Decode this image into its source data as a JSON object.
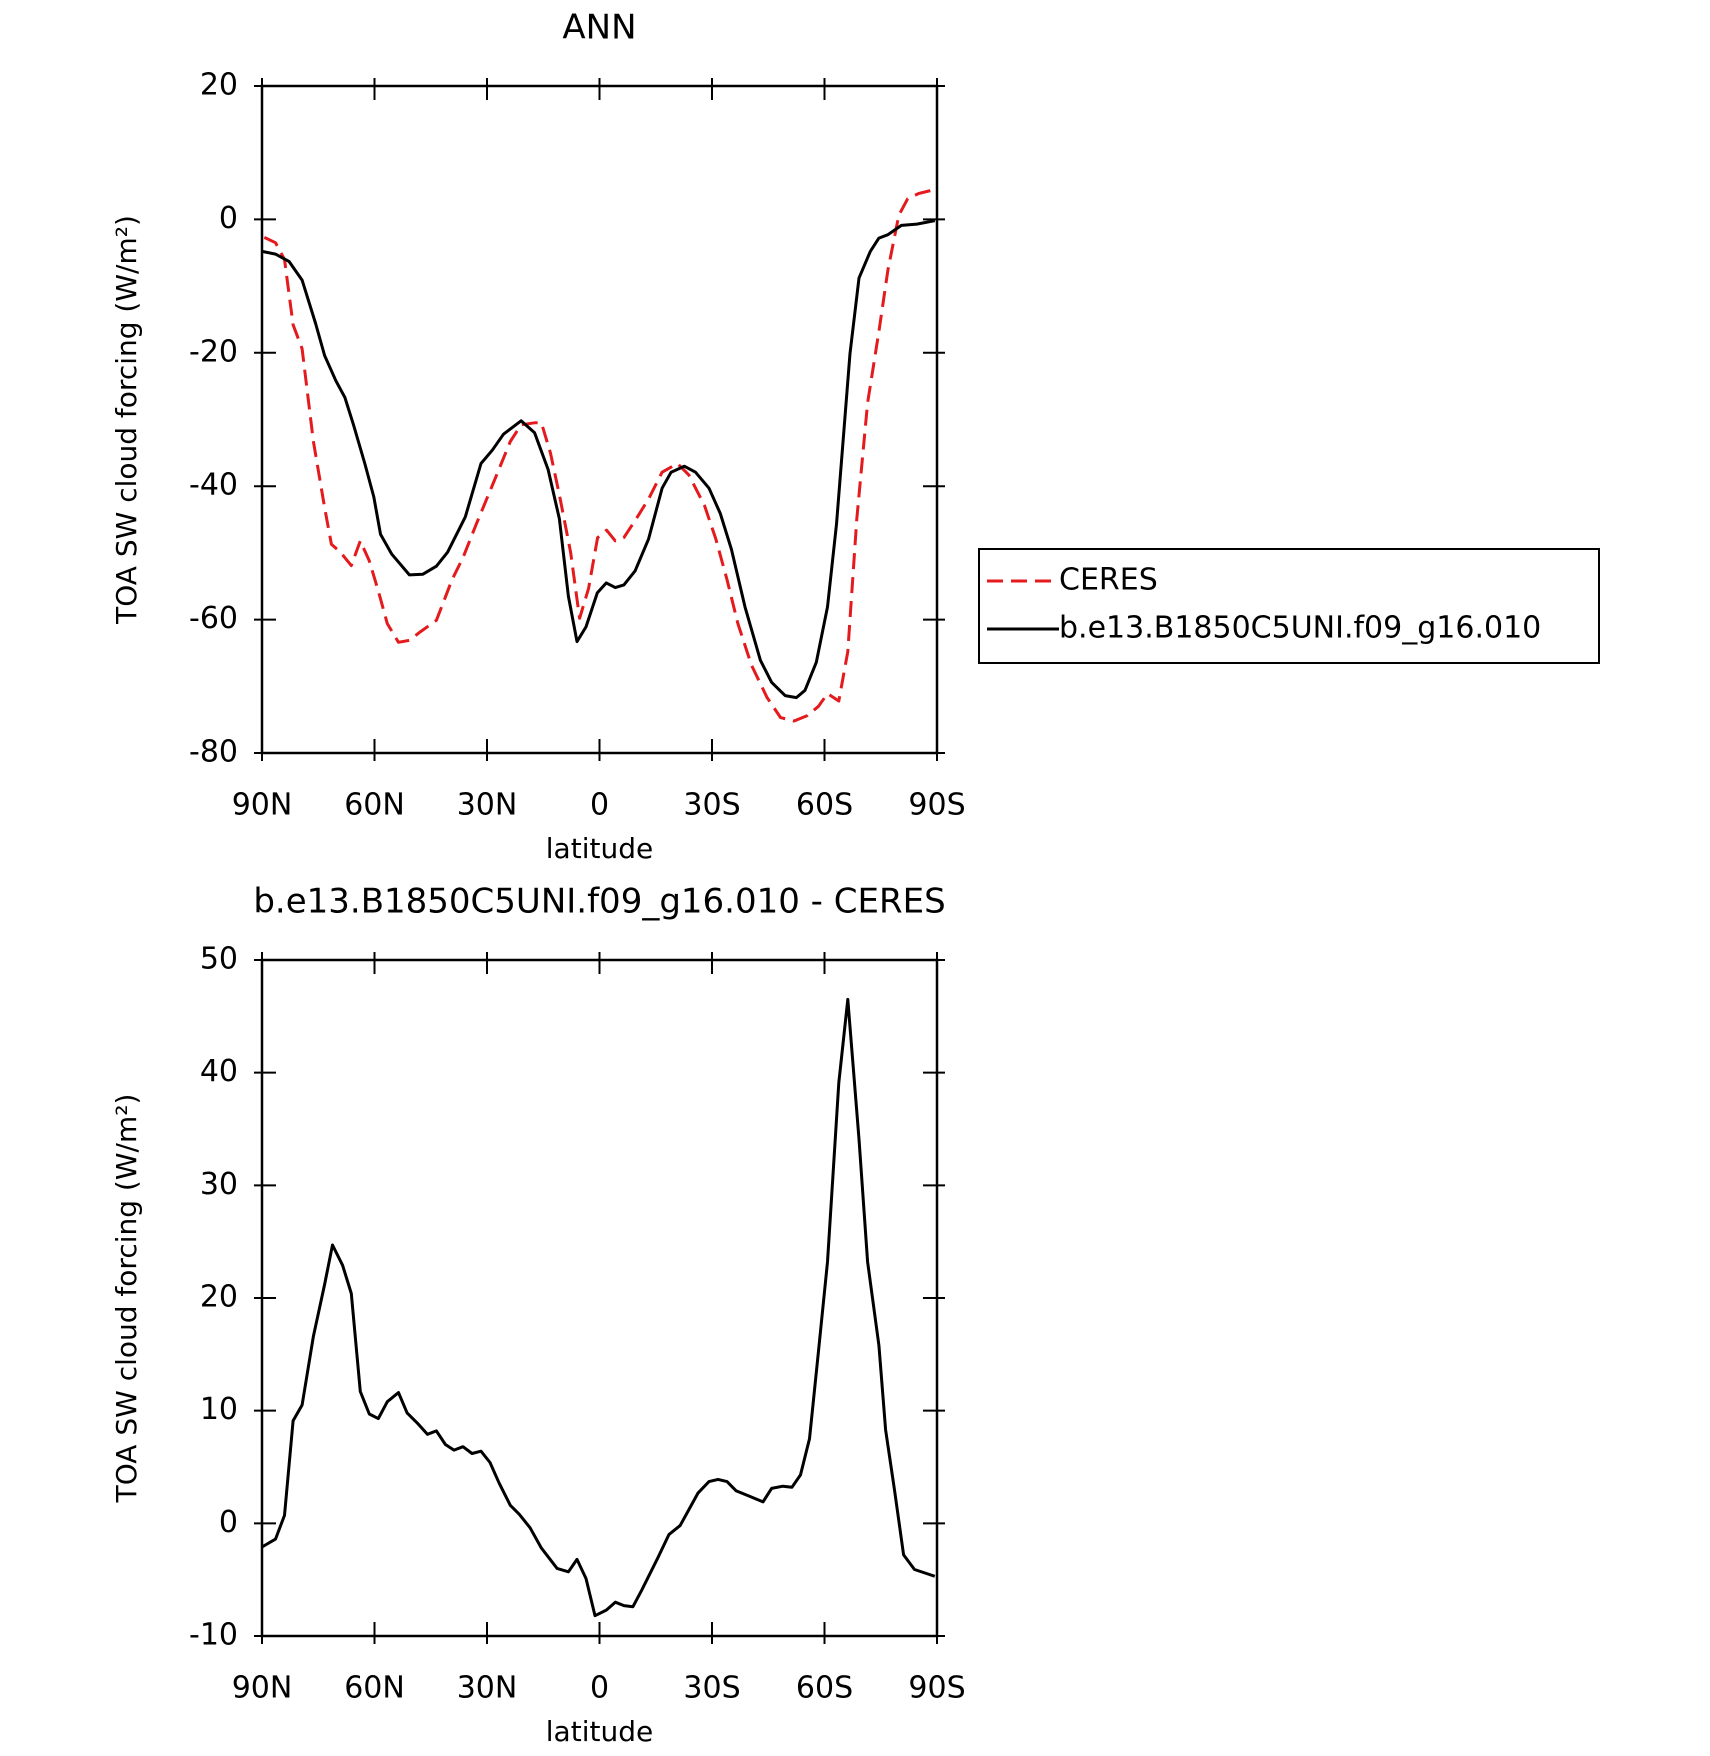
{
  "chart_data": [
    {
      "type": "line",
      "title": "ANN",
      "x_label": "latitude",
      "y_label": "TOA SW cloud forcing (W/m²)",
      "xlim": [
        90,
        -90
      ],
      "ylim": [
        -80,
        20
      ],
      "xticks": [
        {
          "value": 90,
          "label": "90N"
        },
        {
          "value": 60,
          "label": "60N"
        },
        {
          "value": 30,
          "label": "30N"
        },
        0,
        {
          "value": -30,
          "label": "30S"
        },
        {
          "value": -60,
          "label": "60S"
        },
        {
          "value": -90,
          "label": "90S"
        }
      ],
      "yticks": [
        -80,
        -60,
        -40,
        -20,
        0,
        20
      ],
      "legend": "right",
      "series": [
        {
          "name": "CERES",
          "color": "#e41a1c",
          "line_style": "dashed",
          "x": [
            89.4,
            86.4,
            84,
            81.7,
            79.3,
            76.3,
            73.3,
            71.5,
            69.1,
            66.2,
            63.8,
            61.4,
            59,
            56.6,
            53.6,
            50.7,
            47.7,
            43.5,
            39.3,
            36.4,
            32.8,
            28.6,
            23.8,
            20.9,
            17.3,
            15.5,
            13.1,
            10.7,
            7.7,
            5.3,
            2.9,
            0.5,
            -1.9,
            -4.2,
            -6.5,
            -10.1,
            -13.1,
            -16.7,
            -20.8,
            -23.8,
            -28,
            -31,
            -34,
            -36.9,
            -40.5,
            -44.7,
            -48.3,
            -51.9,
            -55.4,
            -58.4,
            -60.8,
            -63.8,
            -66.2,
            -68.6,
            -71.5,
            -74.5,
            -76.9,
            -79.8,
            -82.2,
            -85.2,
            -88.8
          ],
          "values": [
            -2.7,
            -3.5,
            -6,
            -15.8,
            -19.4,
            -33.3,
            -43.2,
            -48.7,
            -49.9,
            -51.9,
            -48.2,
            -51.2,
            -55.7,
            -60.6,
            -63.4,
            -63.1,
            -61.8,
            -60.1,
            -54,
            -50.7,
            -45.6,
            -39.9,
            -33.3,
            -30.8,
            -30.5,
            -30.5,
            -35,
            -41.3,
            -49.9,
            -59.8,
            -55.3,
            -47.7,
            -46.6,
            -48.2,
            -47.7,
            -44.6,
            -41.9,
            -37.9,
            -36.6,
            -38.3,
            -42.9,
            -47.9,
            -54,
            -60.6,
            -66.8,
            -71.7,
            -74.7,
            -75.2,
            -74.4,
            -73,
            -71.1,
            -72.2,
            -64.8,
            -44.9,
            -27.5,
            -16.8,
            -7.6,
            0.6,
            3.1,
            3.9,
            4.4
          ]
        },
        {
          "name": "b.e13.B1850C5UNI.f09_g16.010",
          "color": "#000000",
          "line_style": "solid",
          "x": [
            90,
            86.4,
            82.8,
            79.3,
            75.7,
            73.3,
            70.3,
            67.9,
            65.6,
            62.6,
            60.2,
            58.4,
            55.4,
            50.7,
            47.1,
            43.5,
            40.5,
            35.8,
            31.6,
            28.6,
            25.6,
            20.9,
            17.3,
            13.7,
            10.7,
            8.3,
            6,
            3.6,
            0.6,
            -1.8,
            -4.2,
            -6.5,
            -9.5,
            -13.1,
            -16.7,
            -19.1,
            -22.6,
            -25.6,
            -29.2,
            -32.2,
            -35.2,
            -38.8,
            -42.9,
            -45.9,
            -49.5,
            -52.5,
            -54.8,
            -57.8,
            -60.8,
            -63.2,
            -66.8,
            -69.2,
            -72.2,
            -74.5,
            -76.9,
            -80.5,
            -84.6,
            -89.4
          ],
          "values": [
            -4.8,
            -5.2,
            -6.3,
            -9.1,
            -15.6,
            -20.4,
            -24.2,
            -26.7,
            -30.8,
            -36.6,
            -41.6,
            -47.2,
            -50.2,
            -53.3,
            -53.2,
            -52,
            -49.9,
            -44.6,
            -36.6,
            -34.6,
            -32.2,
            -30.2,
            -32,
            -37.5,
            -44.9,
            -56.5,
            -63.3,
            -61.1,
            -56,
            -54.5,
            -55.2,
            -54.8,
            -52.7,
            -47.9,
            -40.3,
            -37.9,
            -37,
            -37.9,
            -40.3,
            -44.1,
            -49.5,
            -58.1,
            -66.1,
            -69.4,
            -71.4,
            -71.7,
            -70.6,
            -66.4,
            -58.1,
            -45.7,
            -20.1,
            -8.8,
            -4.8,
            -2.8,
            -2.3,
            -0.9,
            -0.7,
            -0.2
          ]
        }
      ]
    },
    {
      "type": "line",
      "title": "b.e13.B1850C5UNI.f09_g16.010 - CERES",
      "x_label": "latitude",
      "y_label": "TOA SW cloud forcing (W/m²)",
      "xlim": [
        90,
        -90
      ],
      "ylim": [
        -10,
        50
      ],
      "xticks": [
        {
          "value": 90,
          "label": "90N"
        },
        {
          "value": 60,
          "label": "60N"
        },
        {
          "value": 30,
          "label": "30N"
        },
        0,
        {
          "value": -30,
          "label": "30S"
        },
        {
          "value": -60,
          "label": "60S"
        },
        {
          "value": -90,
          "label": "90S"
        }
      ],
      "yticks": [
        -10,
        0,
        10,
        20,
        30,
        40,
        50
      ],
      "series": [
        {
          "color": "#000000",
          "line_style": "solid",
          "x": [
            90,
            86.4,
            84,
            81.7,
            79.3,
            76.3,
            73.3,
            71.2,
            68.5,
            66.2,
            63.8,
            61.4,
            59,
            56.6,
            53.6,
            51.3,
            48.3,
            45.9,
            43.5,
            41.1,
            38.8,
            36.4,
            34,
            31.6,
            29.2,
            26.8,
            23.8,
            21.4,
            18.5,
            15.5,
            11.3,
            8.3,
            6,
            3.6,
            1.2,
            -1.8,
            -4.2,
            -6.5,
            -8.9,
            -11.3,
            -15.5,
            -18.5,
            -21.5,
            -26.3,
            -29.2,
            -31.6,
            -34,
            -36.4,
            -40,
            -43.6,
            -45.9,
            -48.9,
            -51.3,
            -53.6,
            -56,
            -58.4,
            -60.8,
            -63.8,
            -66.2,
            -69.2,
            -71.5,
            -74.5,
            -76.3,
            -78.7,
            -81.1,
            -84,
            -87.6,
            -89.4
          ],
          "values": [
            -2.1,
            -1.4,
            0.7,
            9.1,
            10.5,
            16.6,
            21.2,
            24.7,
            22.9,
            20.4,
            11.7,
            9.7,
            9.3,
            10.8,
            11.6,
            9.8,
            8.8,
            7.9,
            8.2,
            7,
            6.5,
            6.8,
            6.2,
            6.4,
            5.4,
            3.6,
            1.6,
            0.8,
            -0.4,
            -2.2,
            -4,
            -4.3,
            -3.2,
            -4.9,
            -8.2,
            -7.7,
            -7,
            -7.3,
            -7.4,
            -5.9,
            -3.1,
            -1,
            -0.2,
            2.7,
            3.7,
            3.9,
            3.7,
            2.9,
            2.4,
            1.9,
            3.1,
            3.3,
            3.2,
            4.3,
            7.5,
            15.3,
            23.2,
            39.1,
            46.5,
            34.1,
            23.2,
            15.8,
            8.3,
            2.9,
            -2.8,
            -4.1,
            -4.5,
            -4.7
          ]
        }
      ]
    }
  ]
}
